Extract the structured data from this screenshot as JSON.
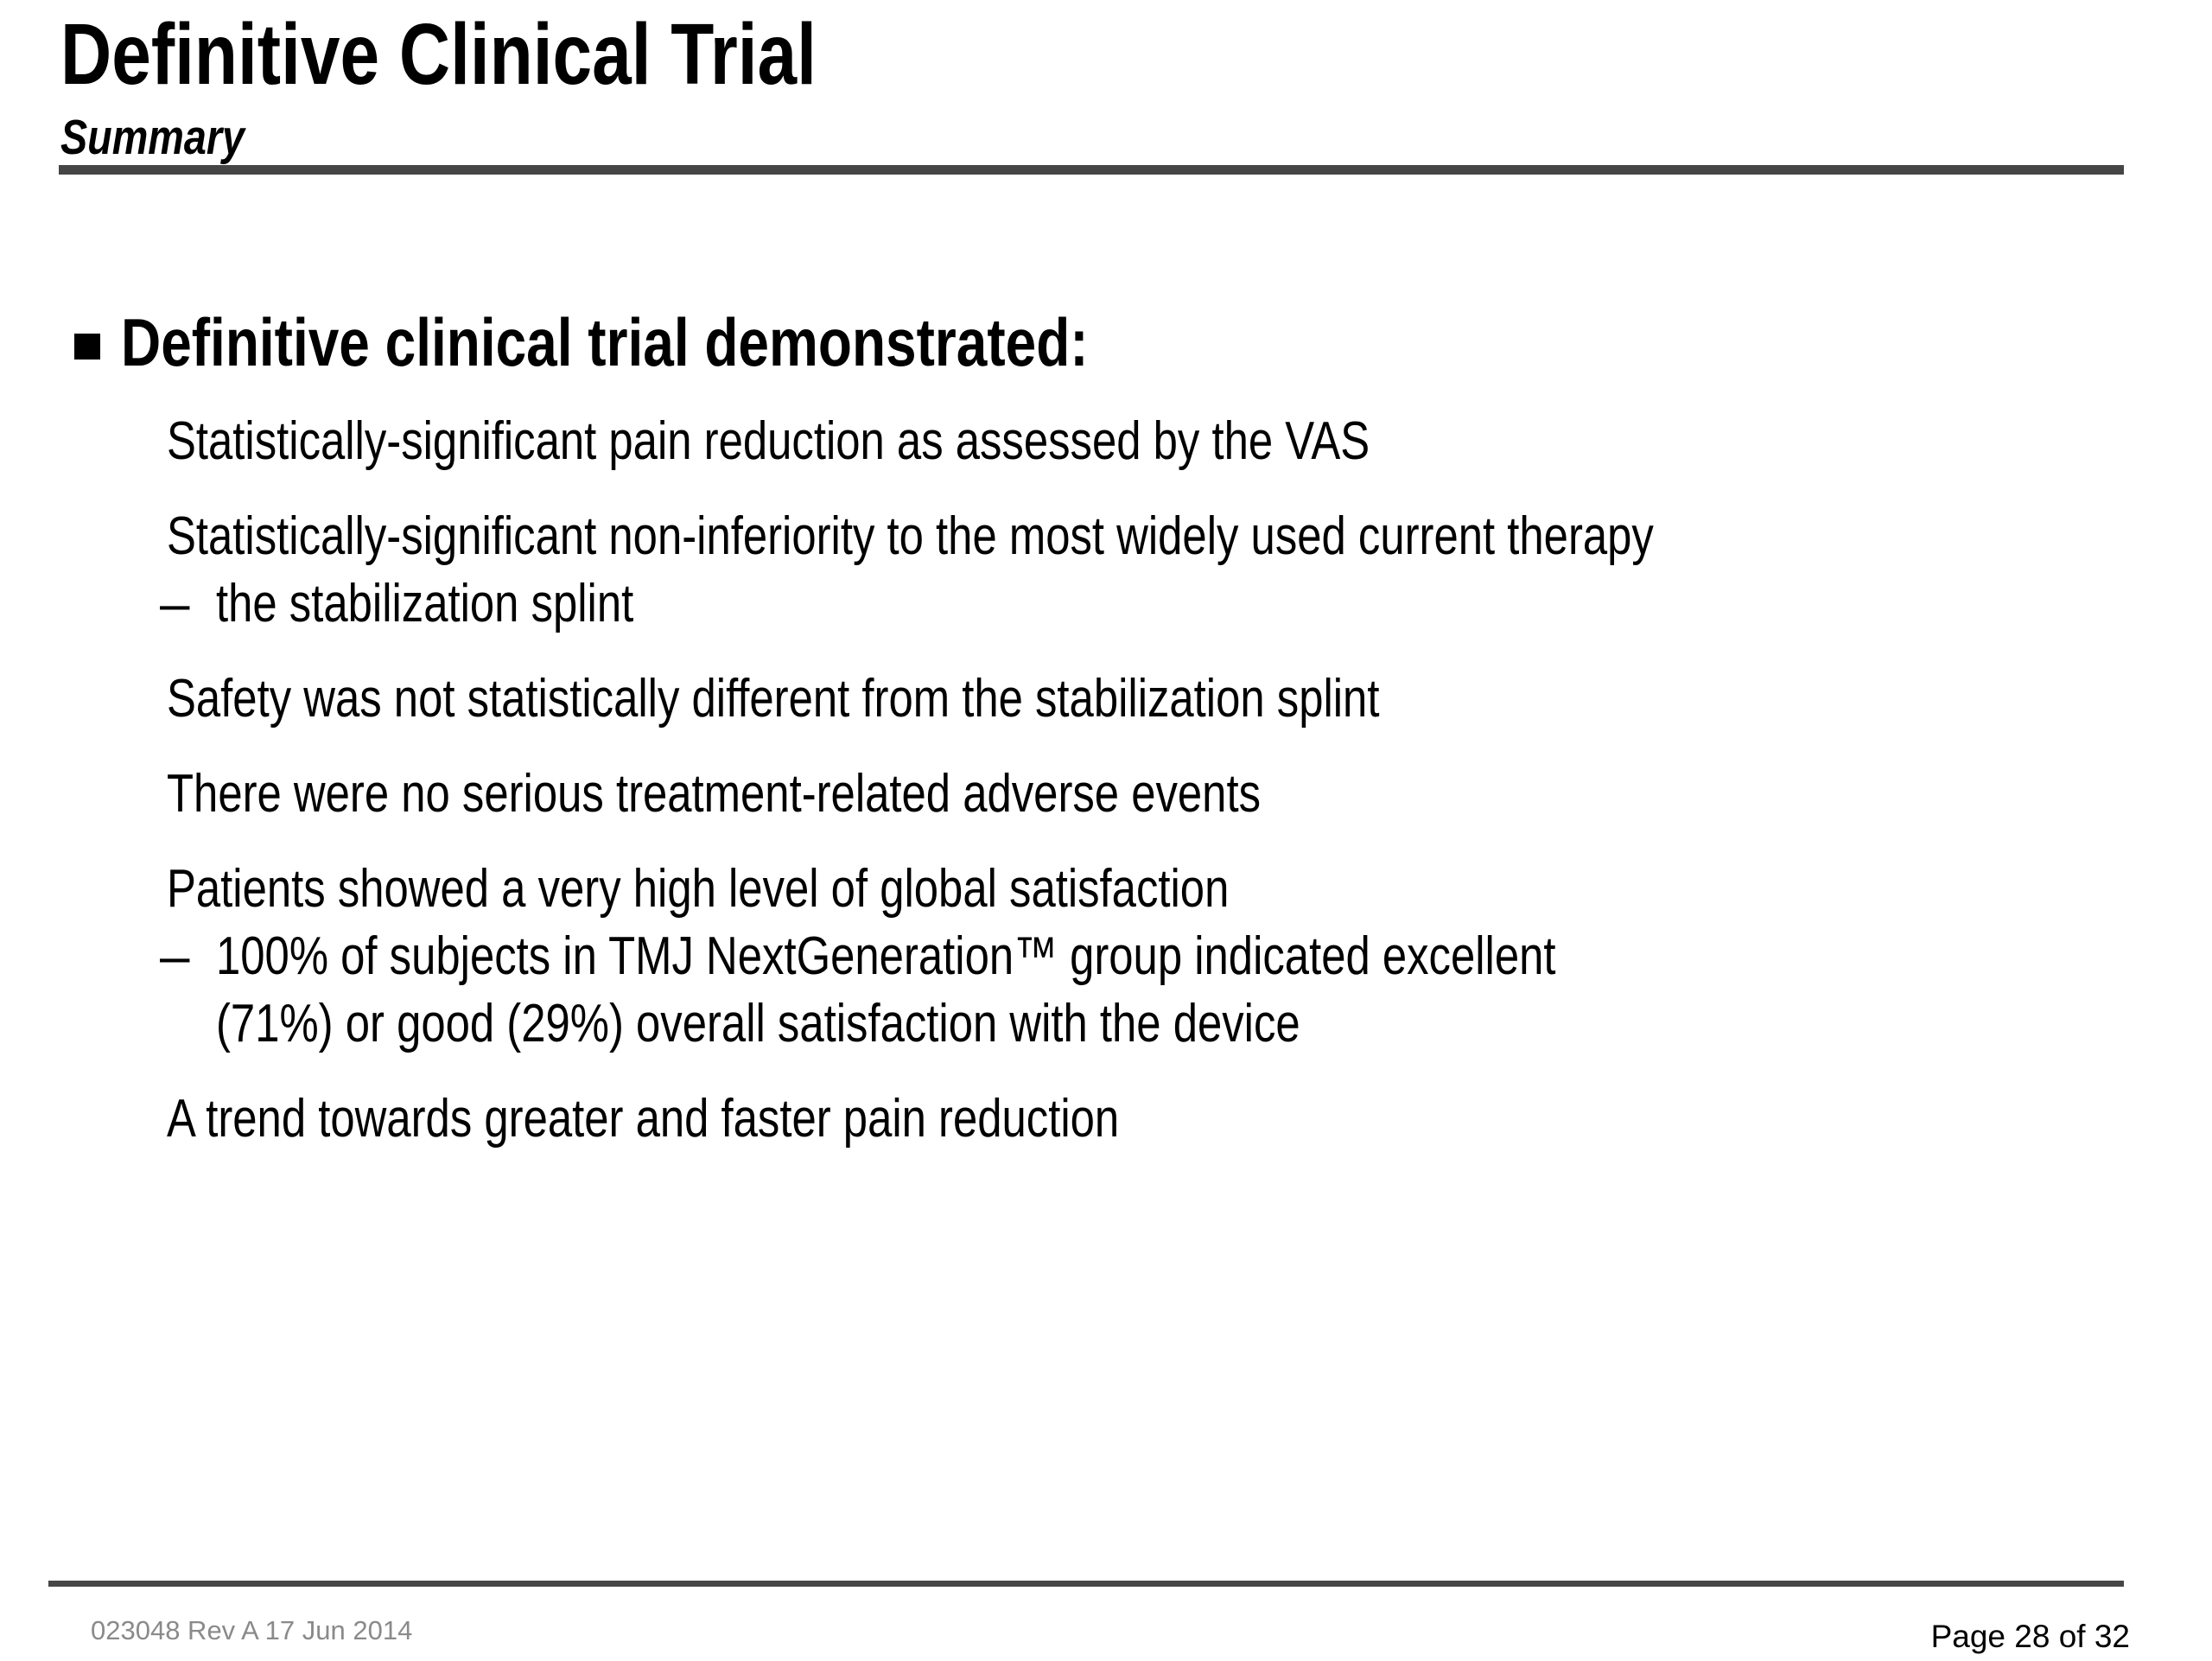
{
  "slide": {
    "title": "Definitive Clinical Trial",
    "subtitle": "Summary",
    "content": {
      "heading": "Definitive clinical trial demonstrated:",
      "dash_glyph": "–",
      "items": [
        {
          "marker": "dot",
          "lines": [
            "Statistically-significant pain reduction as assessed by the VAS"
          ]
        },
        {
          "marker": "dot",
          "lines": [
            "Statistically-significant non-inferiority to the most widely used current therapy"
          ]
        },
        {
          "marker": "dash",
          "lines": [
            "the stabilization splint"
          ]
        },
        {
          "marker": "dot",
          "lines": [
            "Safety was not statistically different from the stabilization splint"
          ]
        },
        {
          "marker": "dot",
          "lines": [
            "There were no serious treatment-related adverse events"
          ]
        },
        {
          "marker": "dot",
          "lines": [
            "Patients showed a very high level of global satisfaction"
          ]
        },
        {
          "marker": "dash",
          "lines": [
            "100% of subjects in TMJ NextGeneration™ group indicated excellent",
            "(71%) or good (29%) overall satisfaction with the device"
          ]
        },
        {
          "marker": "dot",
          "lines": [
            "A trend towards greater and faster pain reduction"
          ]
        }
      ]
    },
    "footer": {
      "left": "023048 Rev A 17 Jun 2014",
      "right": "Page 28 of 32"
    },
    "colors": {
      "rule": "#454545",
      "footer_text": "#8a8a8a",
      "text": "#000000",
      "background": "#ffffff"
    }
  }
}
